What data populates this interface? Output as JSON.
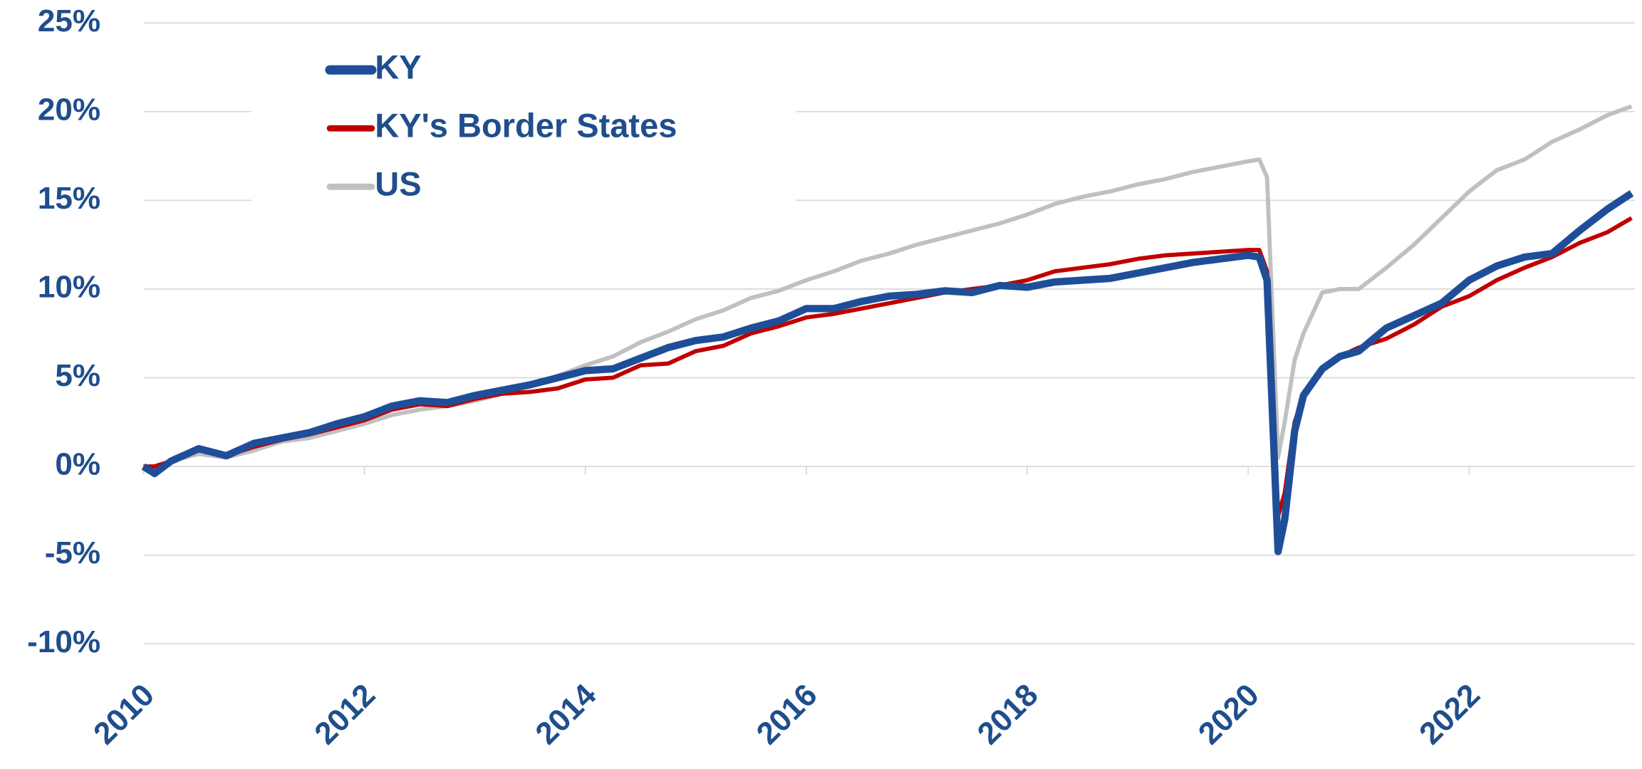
{
  "chart_data": {
    "type": "line",
    "x": [
      2010,
      2010.1,
      2010.25,
      2010.5,
      2010.75,
      2011,
      2011.25,
      2011.5,
      2011.75,
      2012,
      2012.25,
      2012.5,
      2012.75,
      2013,
      2013.25,
      2013.5,
      2013.75,
      2014,
      2014.25,
      2014.5,
      2014.75,
      2015,
      2015.25,
      2015.5,
      2015.75,
      2016,
      2016.25,
      2016.5,
      2016.75,
      2017,
      2017.25,
      2017.5,
      2017.75,
      2018,
      2018.25,
      2018.5,
      2018.75,
      2019,
      2019.25,
      2019.5,
      2019.75,
      2020,
      2020.1,
      2020.17,
      2020.27,
      2020.33,
      2020.42,
      2020.5,
      2020.67,
      2020.83,
      2021,
      2021.25,
      2021.5,
      2021.75,
      2022,
      2022.25,
      2022.5,
      2022.75,
      2023,
      2023.25,
      2023.47
    ],
    "series": [
      {
        "name": "KY",
        "color": "#1f4e99",
        "width": 7,
        "values": [
          0,
          -0.4,
          0.3,
          1.0,
          0.6,
          1.3,
          1.6,
          1.9,
          2.4,
          2.8,
          3.4,
          3.7,
          3.6,
          4.0,
          4.3,
          4.6,
          5.0,
          5.4,
          5.5,
          6.1,
          6.7,
          7.1,
          7.3,
          7.8,
          8.2,
          8.9,
          8.9,
          9.3,
          9.6,
          9.7,
          9.9,
          9.8,
          10.2,
          10.1,
          10.4,
          10.5,
          10.6,
          10.9,
          11.2,
          11.5,
          11.7,
          11.9,
          11.8,
          10.5,
          -4.8,
          -3.0,
          2.0,
          4.0,
          5.5,
          6.2,
          6.5,
          7.8,
          8.5,
          9.2,
          10.5,
          11.3,
          11.8,
          12.0,
          13.3,
          14.5,
          15.4
        ]
      },
      {
        "name": "KY's Border States",
        "color": "#c00000",
        "width": 4,
        "values": [
          0,
          0,
          0.3,
          0.9,
          0.6,
          1.1,
          1.5,
          1.8,
          2.2,
          2.6,
          3.2,
          3.5,
          3.4,
          3.8,
          4.1,
          4.2,
          4.4,
          4.9,
          5.0,
          5.7,
          5.8,
          6.5,
          6.8,
          7.5,
          7.9,
          8.4,
          8.6,
          8.9,
          9.2,
          9.5,
          9.8,
          10.0,
          10.2,
          10.5,
          11.0,
          11.2,
          11.4,
          11.7,
          11.9,
          12.0,
          12.1,
          12.2,
          12.2,
          11.0,
          -2.8,
          -1.5,
          2.5,
          4.0,
          5.5,
          6.2,
          6.7,
          7.2,
          8.0,
          9.0,
          9.6,
          10.5,
          11.2,
          11.8,
          12.6,
          13.2,
          14.0
        ]
      },
      {
        "name": "US",
        "color": "#c0c0c0",
        "width": 4,
        "values": [
          0,
          -0.1,
          0.3,
          0.7,
          0.5,
          0.9,
          1.4,
          1.6,
          2.0,
          2.4,
          2.9,
          3.2,
          3.4,
          3.7,
          4.1,
          4.6,
          5.1,
          5.7,
          6.2,
          7.0,
          7.6,
          8.3,
          8.8,
          9.5,
          9.9,
          10.5,
          11.0,
          11.6,
          12.0,
          12.5,
          12.9,
          13.3,
          13.7,
          14.2,
          14.8,
          15.2,
          15.5,
          15.9,
          16.2,
          16.6,
          16.9,
          17.2,
          17.3,
          16.3,
          0.5,
          2.5,
          6.0,
          7.5,
          9.8,
          10.0,
          10.0,
          11.2,
          12.5,
          14.0,
          15.5,
          16.7,
          17.3,
          18.3,
          19.0,
          19.8,
          20.3
        ]
      }
    ],
    "xlim": [
      2010,
      2023.5
    ],
    "xticks": [
      2010,
      2012,
      2014,
      2016,
      2018,
      2020,
      2022
    ],
    "ylim": [
      -10,
      25
    ],
    "yticks": [
      {
        "value": -10,
        "label": "-10%"
      },
      {
        "value": -5,
        "label": "-5%"
      },
      {
        "value": 0,
        "label": "0%"
      },
      {
        "value": 5,
        "label": "5%"
      },
      {
        "value": 10,
        "label": "10%"
      },
      {
        "value": 15,
        "label": "15%"
      },
      {
        "value": 20,
        "label": "20%"
      },
      {
        "value": 25,
        "label": "25%"
      }
    ],
    "grid": true,
    "legend": "upper left"
  }
}
